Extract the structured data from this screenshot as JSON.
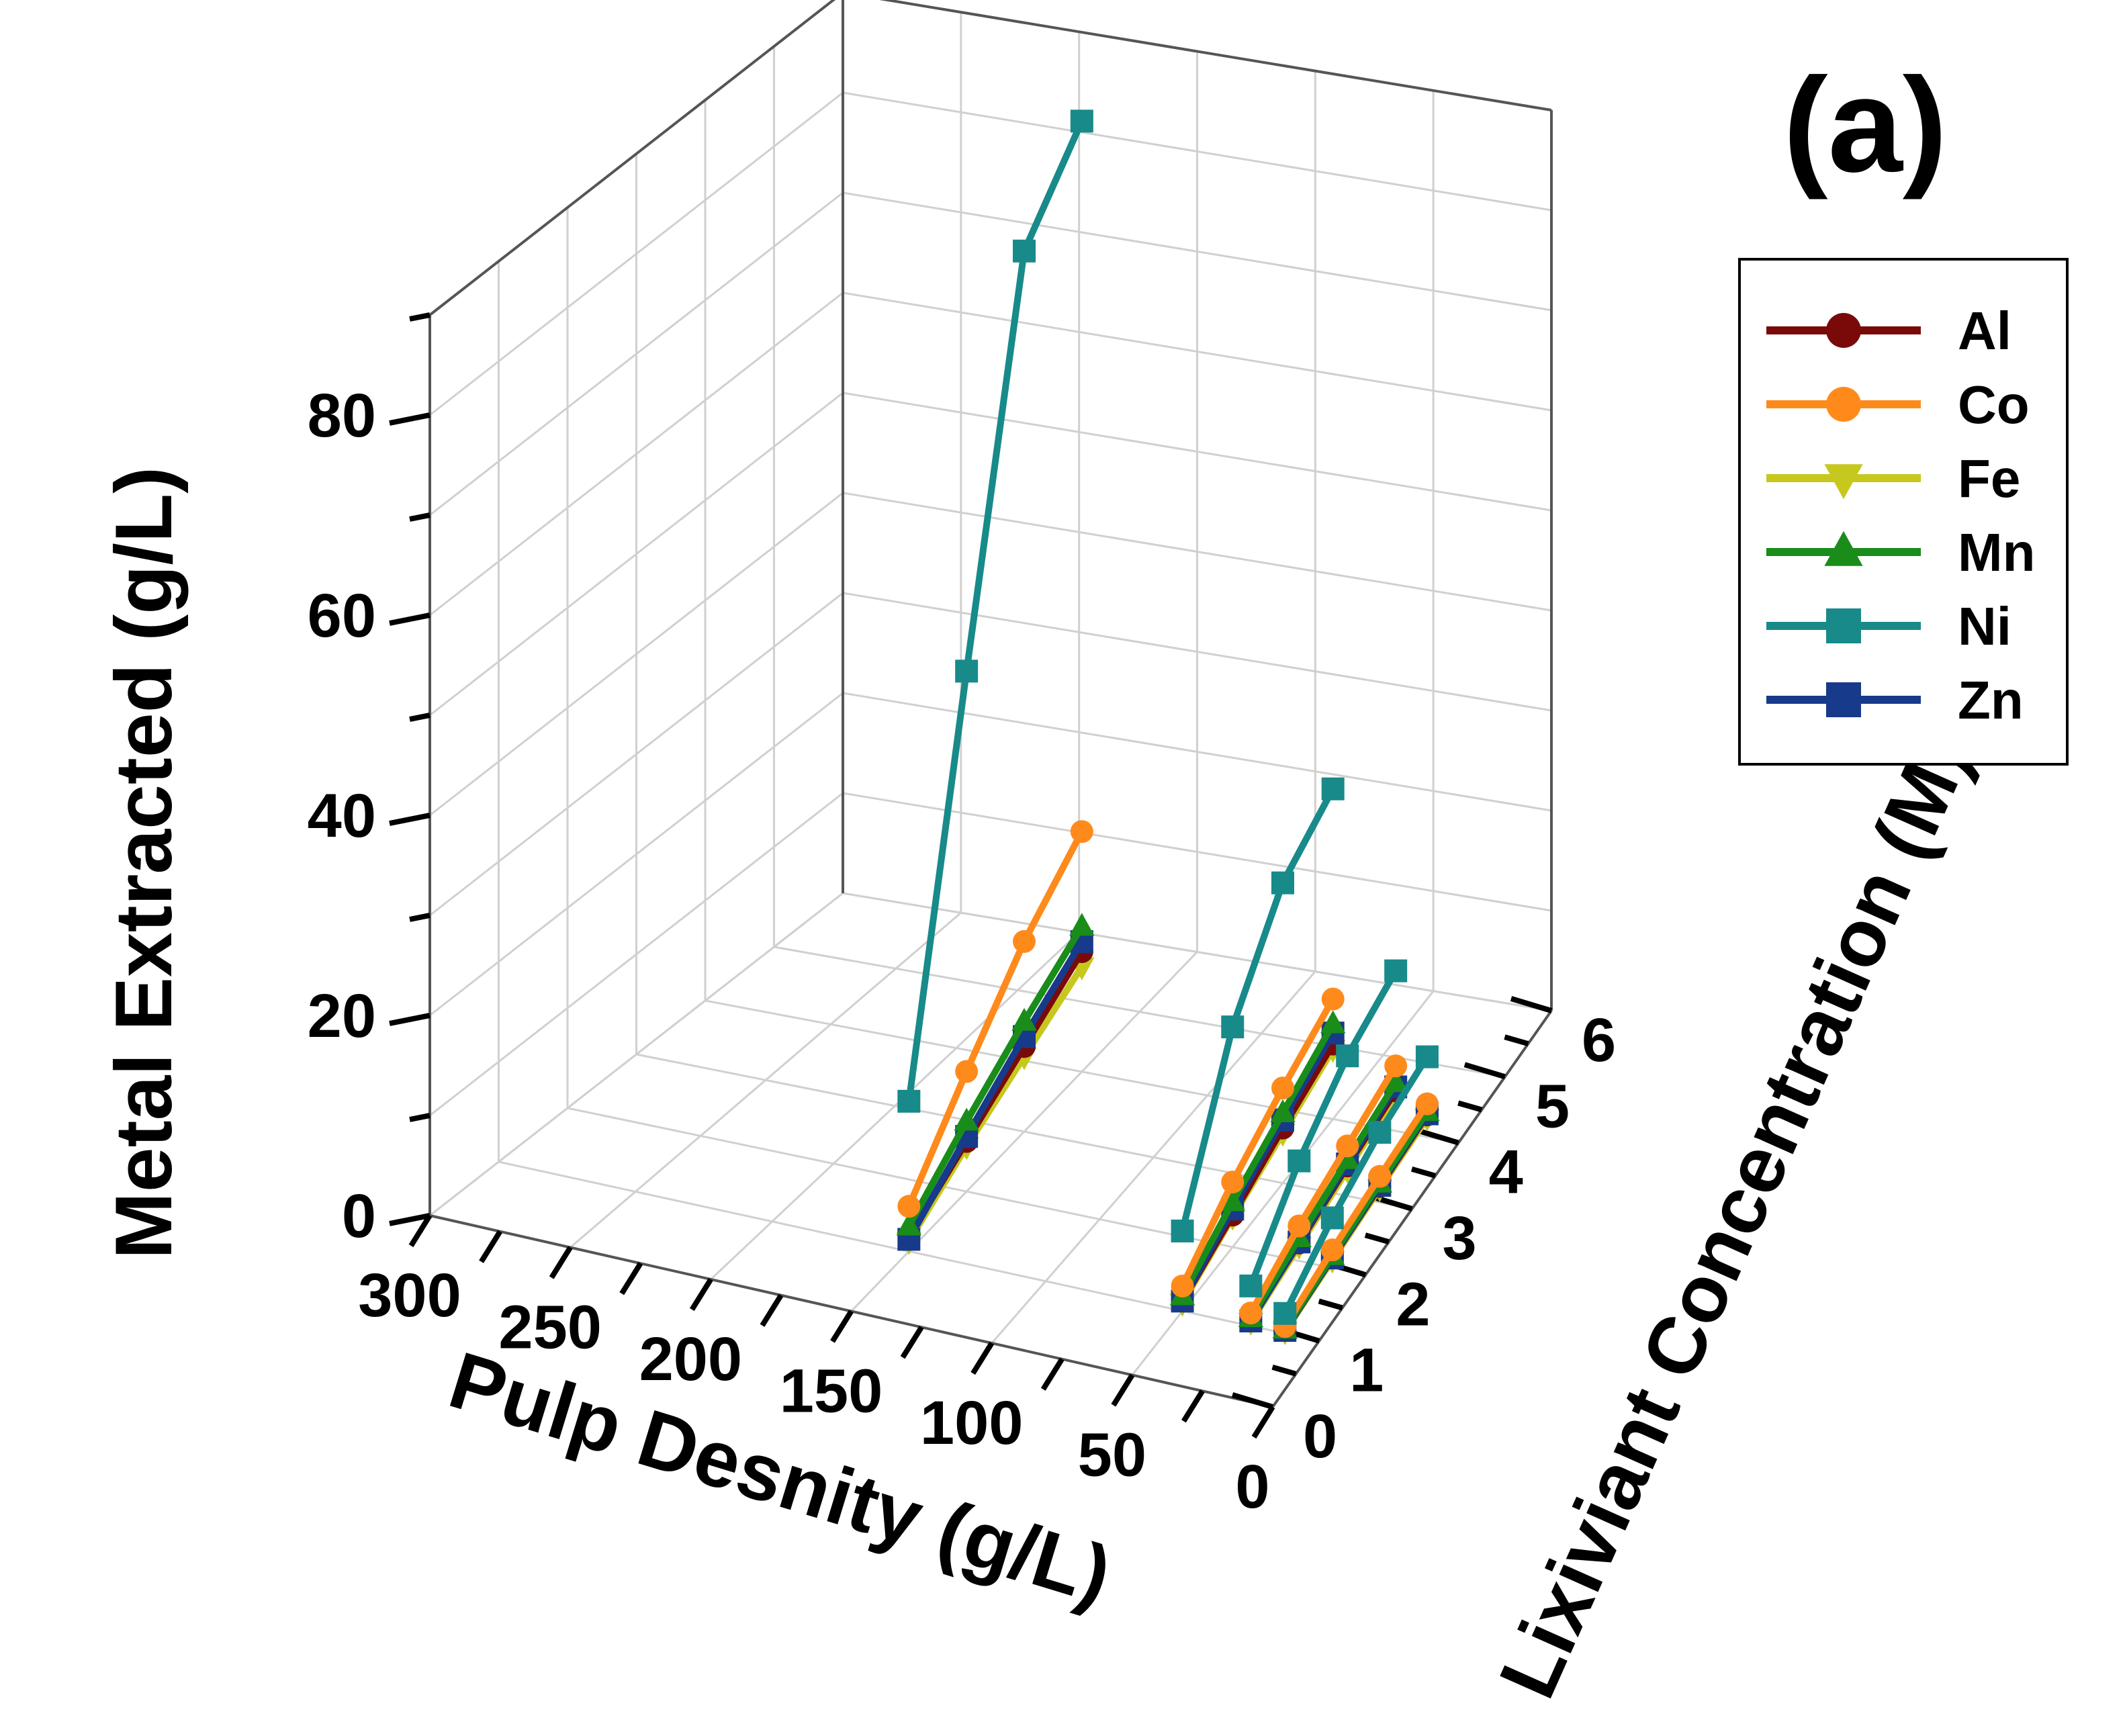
{
  "panel_label": "(a)",
  "chart_data": {
    "type": "line-3d",
    "title": "",
    "zlabel": "Metal Extracted (g/L)",
    "xlabel": "Pulp Desnity (g/L)",
    "ylabel": "Lixiviant Concentration (M)",
    "z_ticks": [
      "0",
      "20",
      "40",
      "60",
      "80"
    ],
    "x_ticks": [
      "300",
      "250",
      "200",
      "150",
      "100",
      "50",
      "0"
    ],
    "y_ticks": [
      "0",
      "1",
      "2",
      "3",
      "4",
      "5",
      "6"
    ],
    "zlim": [
      0,
      90
    ],
    "xlim": [
      0,
      300
    ],
    "ylim": [
      0,
      6
    ],
    "legend": [
      "Al",
      "Co",
      "Fe",
      "Mn",
      "Ni",
      "Zn"
    ],
    "legend_position": "top-right",
    "grid": true,
    "groups": [
      {
        "pulp_density": 150,
        "lixiviant": [
          1,
          2,
          3,
          4
        ]
      },
      {
        "pulp_density": 50,
        "lixiviant": [
          1,
          2,
          3,
          4
        ]
      },
      {
        "pulp_density": 25,
        "lixiviant": [
          1,
          2,
          3,
          4
        ]
      },
      {
        "pulp_density": 12.5,
        "lixiviant": [
          1,
          2,
          3,
          4
        ]
      }
    ],
    "series": [
      {
        "name": "Al",
        "color": "#7a0a0a",
        "marker": "circle",
        "values": [
          [
            1.5,
            5.0,
            8.5,
            12.0
          ],
          [
            1.0,
            3.2,
            5.5,
            7.5
          ],
          [
            0.6,
            1.8,
            3.0,
            4.0
          ],
          [
            0.3,
            1.0,
            1.6,
            2.2
          ]
        ]
      },
      {
        "name": "Co",
        "color": "#ff8a1c",
        "marker": "circle",
        "values": [
          [
            4.5,
            12.0,
            19.0,
            24.0
          ],
          [
            2.5,
            6.5,
            9.5,
            12.0
          ],
          [
            1.3,
            3.5,
            5.0,
            6.5
          ],
          [
            0.7,
            1.8,
            2.6,
            3.3
          ]
        ]
      },
      {
        "name": "Fe",
        "color": "#c6c81e",
        "marker": "triangle-down",
        "values": [
          [
            1.0,
            4.5,
            7.5,
            10.5
          ],
          [
            0.8,
            3.0,
            5.0,
            7.0
          ],
          [
            0.4,
            1.5,
            2.6,
            3.6
          ],
          [
            0.2,
            0.8,
            1.4,
            1.9
          ]
        ]
      },
      {
        "name": "Mn",
        "color": "#1a8c1a",
        "marker": "triangle-up",
        "values": [
          [
            2.5,
            7.0,
            11.0,
            14.5
          ],
          [
            1.5,
            4.5,
            7.0,
            9.5
          ],
          [
            0.8,
            2.3,
            3.6,
            4.8
          ],
          [
            0.4,
            1.2,
            1.9,
            2.5
          ]
        ]
      },
      {
        "name": "Ni",
        "color": "#188a8a",
        "marker": "square",
        "values": [
          [
            15.0,
            52.0,
            88.0,
            95.0
          ],
          [
            8.0,
            22.0,
            30.0,
            33.0
          ],
          [
            4.0,
            10.0,
            14.0,
            16.0
          ],
          [
            2.0,
            5.0,
            7.0,
            8.0
          ]
        ]
      },
      {
        "name": "Zn",
        "color": "#173a8a",
        "marker": "square",
        "values": [
          [
            1.2,
            5.5,
            9.5,
            13.0
          ],
          [
            1.0,
            3.8,
            6.3,
            8.6
          ],
          [
            0.5,
            1.9,
            3.2,
            4.4
          ],
          [
            0.3,
            1.0,
            1.7,
            2.3
          ]
        ]
      }
    ]
  }
}
